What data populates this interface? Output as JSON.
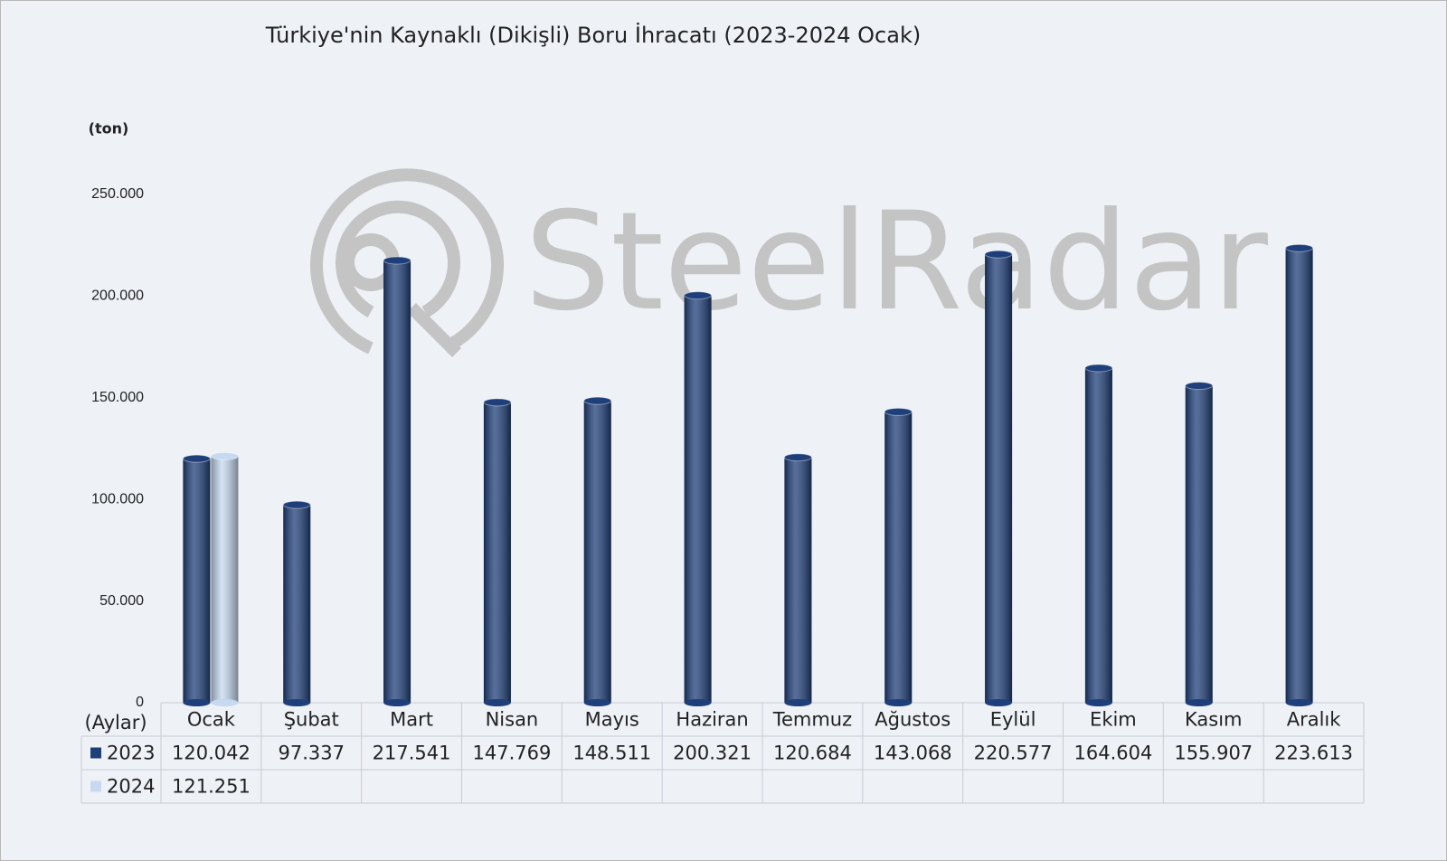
{
  "chart_data": {
    "type": "bar",
    "title": "Türkiye'nin Kaynaklı (Dikişli) Boru İhracatı (2023-2024 Ocak)",
    "y_label": "(ton)",
    "x_label": "(Aylar)",
    "watermark": "SteelRadar",
    "categories": [
      "Ocak",
      "Şubat",
      "Mart",
      "Nisan",
      "Mayıs",
      "Haziran",
      "Temmuz",
      "Ağustos",
      "Eylül",
      "Ekim",
      "Kasım",
      "Aralık"
    ],
    "series": [
      {
        "name": "2023",
        "color": "#1f3f7a",
        "values": [
          120042,
          97337,
          217541,
          147769,
          148511,
          200321,
          120684,
          143068,
          220577,
          164604,
          155907,
          223613
        ],
        "value_labels": [
          "120.042",
          "97.337",
          "217.541",
          "147.769",
          "148.511",
          "200.321",
          "120.684",
          "143.068",
          "220.577",
          "164.604",
          "155.907",
          "223.613"
        ]
      },
      {
        "name": "2024",
        "color": "#c6d9f0",
        "values": [
          121251,
          null,
          null,
          null,
          null,
          null,
          null,
          null,
          null,
          null,
          null,
          null
        ],
        "value_labels": [
          "121.251",
          null,
          null,
          null,
          null,
          null,
          null,
          null,
          null,
          null,
          null,
          null
        ]
      }
    ],
    "ylim": [
      0,
      250000
    ],
    "yticks": [
      0,
      {
        "value": 50000,
        "label": "50.000"
      },
      {
        "value": 100000,
        "label": "100.000"
      },
      {
        "value": 150000,
        "label": "150.000"
      },
      {
        "value": 200000,
        "label": "200.000"
      },
      {
        "value": 250000,
        "label": "250.000"
      }
    ],
    "grid": false
  }
}
